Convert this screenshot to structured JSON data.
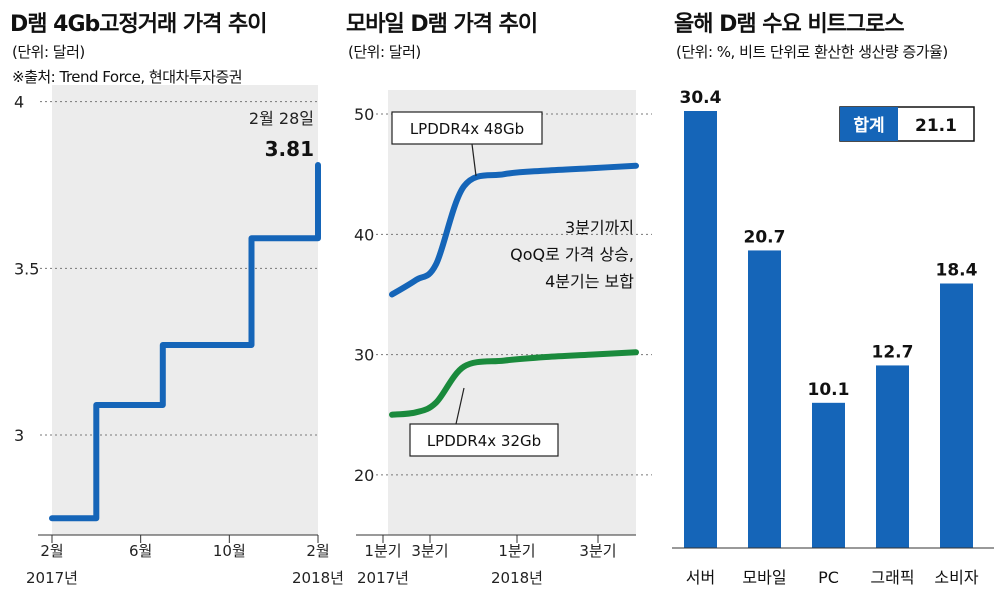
{
  "panels": {
    "contract": {
      "title": "D램 4Gb고정거래 가격 추이",
      "unit": "(단위: 달러)",
      "source": "※출처: Trend Force, 현대차투자증권",
      "last_label": "2월 28일",
      "last_value": "3.81"
    },
    "mobile": {
      "title": "모바일 D램 가격 추이",
      "unit": "(단위: 달러)",
      "note_lines": [
        "3분기까지",
        "QoQ로 가격 상승,",
        "4분기는 보합"
      ]
    },
    "demand": {
      "title": "올해 D램 수요 비트그로스",
      "unit": "(단위: %, 비트 단위로 환산한 생산량 증가율)",
      "total_label": "합계",
      "total_value": "21.1"
    }
  },
  "colors": {
    "blue": "#1565b8",
    "green": "#1a8a3c",
    "fill": "#ececec",
    "grid": "#777777"
  },
  "chart_data": [
    {
      "type": "line",
      "step": true,
      "ylim": [
        2.7,
        4.05
      ],
      "yticks": [
        "3",
        "3.5",
        "4"
      ],
      "xticks": [
        {
          "x": 1,
          "label": "2월",
          "sub": "2017년"
        },
        {
          "x": 5,
          "label": "6월",
          "sub": ""
        },
        {
          "x": 9,
          "label": "10월",
          "sub": ""
        },
        {
          "x": 13,
          "label": "2월",
          "sub": "2018년"
        }
      ],
      "x": [
        1,
        2,
        3,
        4,
        5,
        6,
        7,
        8,
        9,
        10,
        11,
        12,
        13
      ],
      "values": [
        2.75,
        2.75,
        3.09,
        3.09,
        3.09,
        3.27,
        3.27,
        3.27,
        3.27,
        3.59,
        3.59,
        3.59,
        3.81
      ]
    },
    {
      "type": "line",
      "ylim": [
        15,
        52
      ],
      "yticks": [
        "20",
        "30",
        "40",
        "50"
      ],
      "xticks": [
        {
          "x": 1,
          "label": "1분기",
          "sub": "2017년"
        },
        {
          "x": 3,
          "label": "3분기",
          "sub": ""
        },
        {
          "x": 5,
          "label": "1분기",
          "sub": "2018년"
        },
        {
          "x": 7,
          "label": "3분기",
          "sub": ""
        }
      ],
      "x": [
        1,
        2,
        3,
        4,
        5,
        6,
        7,
        8
      ],
      "series": [
        {
          "name": "LPDDR4x 48Gb",
          "color": "blue",
          "values": [
            35,
            36.2,
            37.5,
            44,
            45,
            45.3,
            45.5,
            45.7
          ]
        },
        {
          "name": "LPDDR4x 32Gb",
          "color": "green",
          "values": [
            25,
            25.2,
            26,
            29,
            29.5,
            29.8,
            30,
            30.2
          ]
        }
      ]
    },
    {
      "type": "bar",
      "ylim": [
        0,
        32
      ],
      "categories": [
        "서버",
        "모바일",
        "PC",
        "그래픽",
        "소비자"
      ],
      "values": [
        30.4,
        20.7,
        10.1,
        12.7,
        18.4
      ]
    }
  ]
}
